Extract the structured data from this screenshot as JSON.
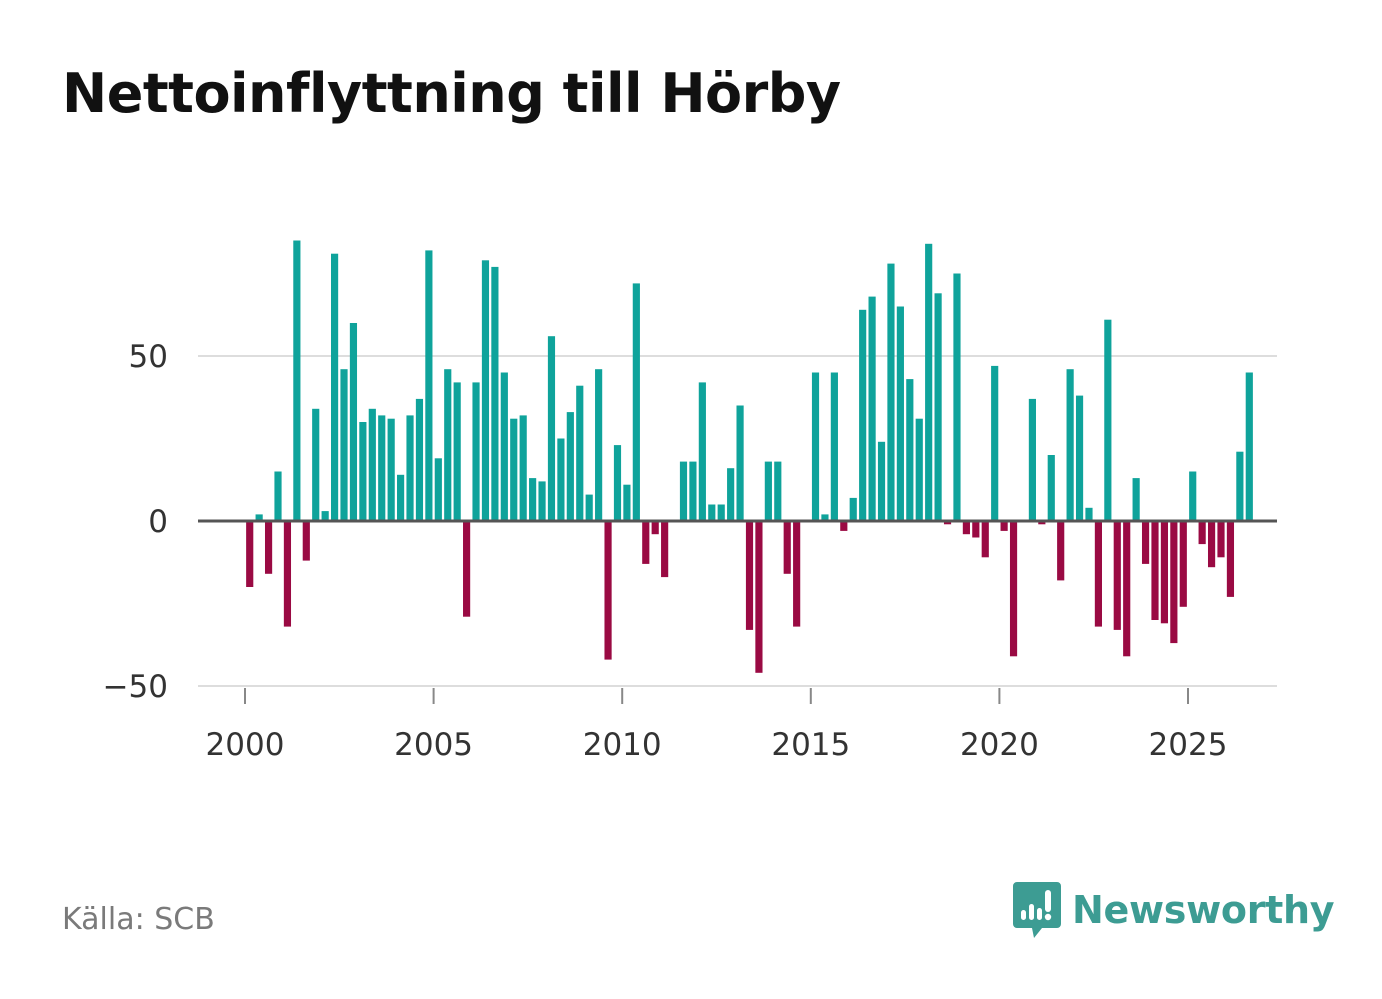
{
  "title": "Nettoinflyttning till Hörby",
  "source": "Källa: SCB",
  "brand": {
    "name": "Newsworthy",
    "icon": "newsworthy-logo-icon"
  },
  "colors": {
    "positive": "#0fa39b",
    "negative": "#9a0a43",
    "grid": "#dddddd",
    "zero_line": "#555555",
    "brand": "#3d9c93"
  },
  "chart_data": {
    "type": "bar",
    "title": "Nettoinflyttning till Hörby",
    "xlabel": "",
    "ylabel": "",
    "frequency": "quarterly",
    "start": "2000 Q1",
    "ylim": [
      -50,
      100
    ],
    "yticks": [
      -50,
      0,
      50
    ],
    "ytick_labels": [
      "−50",
      "0",
      "50"
    ],
    "xticks": [
      2000,
      2005,
      2010,
      2015,
      2020,
      2025
    ],
    "xtick_labels": [
      "2000",
      "2005",
      "2010",
      "2015",
      "2020",
      "2025"
    ],
    "grid": true,
    "values": [
      -20,
      2,
      -16,
      15,
      -32,
      85,
      -12,
      34,
      3,
      81,
      46,
      60,
      30,
      34,
      32,
      31,
      14,
      32,
      37,
      82,
      19,
      46,
      42,
      -29,
      42,
      79,
      77,
      45,
      31,
      32,
      13,
      12,
      56,
      25,
      33,
      41,
      8,
      46,
      -42,
      23,
      11,
      72,
      -13,
      -4,
      -17,
      0,
      18,
      18,
      42,
      5,
      5,
      16,
      35,
      -33,
      -46,
      18,
      18,
      -16,
      -32,
      0,
      45,
      2,
      45,
      -3,
      7,
      64,
      68,
      24,
      78,
      65,
      43,
      31,
      84,
      69,
      -1,
      75,
      -4,
      -5,
      -11,
      47,
      -3,
      -41,
      0,
      37,
      -1,
      20,
      -18,
      46,
      38,
      4,
      -32,
      61,
      -33,
      -41,
      13,
      -13,
      -30,
      -31,
      -37,
      -26,
      15,
      -7,
      -14,
      -11,
      -23,
      21,
      45
    ]
  }
}
